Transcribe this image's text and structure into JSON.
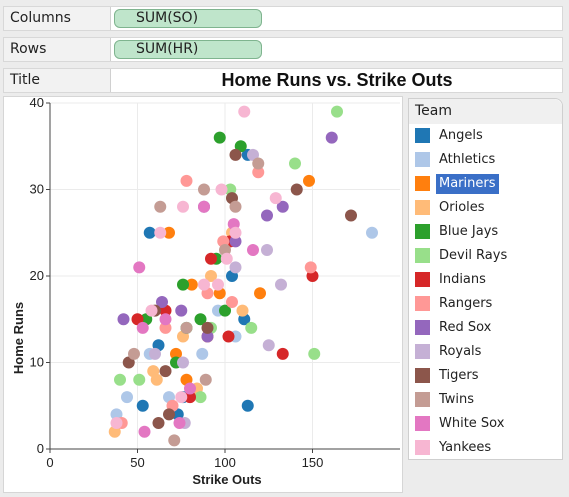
{
  "shelves": {
    "columns": {
      "label": "Columns",
      "pill": "SUM(SO)"
    },
    "rows": {
      "label": "Rows",
      "pill": "SUM(HR)"
    },
    "title": {
      "label": "Title",
      "value": "Home Runs vs. Strike Outs"
    }
  },
  "legend": {
    "title": "Team",
    "selected": "Mariners",
    "items": [
      {
        "name": "Angels",
        "color": "#1f77b4"
      },
      {
        "name": "Athletics",
        "color": "#aec7e8"
      },
      {
        "name": "Mariners",
        "color": "#ff7f0e"
      },
      {
        "name": "Orioles",
        "color": "#ffbb78"
      },
      {
        "name": "Blue Jays",
        "color": "#2ca02c"
      },
      {
        "name": "Devil Rays",
        "color": "#98df8a"
      },
      {
        "name": "Indians",
        "color": "#d62728"
      },
      {
        "name": "Rangers",
        "color": "#ff9896"
      },
      {
        "name": "Red Sox",
        "color": "#9467bd"
      },
      {
        "name": "Royals",
        "color": "#c5b0d5"
      },
      {
        "name": "Tigers",
        "color": "#8c564b"
      },
      {
        "name": "Twins",
        "color": "#c49c94"
      },
      {
        "name": "White Sox",
        "color": "#e377c2"
      },
      {
        "name": "Yankees",
        "color": "#f7b6d2"
      }
    ]
  },
  "chart_data": {
    "type": "scatter",
    "title": "Home Runs vs. Strike Outs",
    "xlabel": "Strike Outs",
    "ylabel": "Home Runs",
    "xlim": [
      0,
      200
    ],
    "ylim": [
      0,
      40
    ],
    "xticks": [
      0,
      50,
      100,
      150
    ],
    "yticks": [
      0,
      10,
      20,
      30,
      40
    ],
    "grid": true,
    "legend_position": "right",
    "series": [
      {
        "name": "Angels",
        "points": [
          [
            57,
            25
          ],
          [
            113,
            34
          ],
          [
            111,
            15
          ],
          [
            76,
            6
          ],
          [
            73,
            4
          ],
          [
            53,
            5
          ],
          [
            104,
            20
          ],
          [
            62,
            12
          ],
          [
            113,
            5
          ]
        ]
      },
      {
        "name": "Athletics",
        "points": [
          [
            184,
            25
          ],
          [
            57,
            11
          ],
          [
            44,
            6
          ],
          [
            38,
            4
          ],
          [
            68,
            6
          ],
          [
            87,
            11
          ],
          [
            106,
            13
          ],
          [
            96,
            16
          ]
        ]
      },
      {
        "name": "Mariners",
        "points": [
          [
            68,
            25
          ],
          [
            148,
            31
          ],
          [
            120,
            18
          ],
          [
            72,
            11
          ],
          [
            78,
            8
          ],
          [
            81,
            19
          ],
          [
            90,
            13
          ],
          [
            97,
            18
          ]
        ]
      },
      {
        "name": "Orioles",
        "points": [
          [
            37,
            2
          ],
          [
            59,
            9
          ],
          [
            76,
            13
          ],
          [
            104,
            25
          ],
          [
            92,
            20
          ],
          [
            110,
            16
          ],
          [
            84,
            7
          ],
          [
            61,
            8
          ]
        ]
      },
      {
        "name": "Blue Jays",
        "points": [
          [
            97,
            36
          ],
          [
            109,
            35
          ],
          [
            76,
            19
          ],
          [
            78,
            14
          ],
          [
            55,
            15
          ],
          [
            86,
            15
          ],
          [
            95,
            22
          ],
          [
            100,
            16
          ],
          [
            72,
            10
          ]
        ]
      },
      {
        "name": "Devil Rays",
        "points": [
          [
            164,
            39
          ],
          [
            140,
            33
          ],
          [
            103,
            30
          ],
          [
            115,
            14
          ],
          [
            151,
            11
          ],
          [
            40,
            8
          ],
          [
            51,
            8
          ],
          [
            92,
            14
          ],
          [
            86,
            6
          ]
        ]
      },
      {
        "name": "Indians",
        "points": [
          [
            150,
            20
          ],
          [
            133,
            11
          ],
          [
            92,
            22
          ],
          [
            103,
            24
          ],
          [
            66,
            16
          ],
          [
            50,
            15
          ],
          [
            102,
            13
          ],
          [
            80,
            6
          ]
        ]
      },
      {
        "name": "Rangers",
        "points": [
          [
            78,
            31
          ],
          [
            119,
            32
          ],
          [
            149,
            21
          ],
          [
            99,
            24
          ],
          [
            90,
            18
          ],
          [
            104,
            17
          ],
          [
            66,
            14
          ],
          [
            41,
            3
          ],
          [
            70,
            5
          ]
        ]
      },
      {
        "name": "Red Sox",
        "points": [
          [
            161,
            36
          ],
          [
            133,
            28
          ],
          [
            124,
            27
          ],
          [
            106,
            24
          ],
          [
            88,
            28
          ],
          [
            64,
            17
          ],
          [
            42,
            15
          ],
          [
            75,
            16
          ],
          [
            90,
            13
          ]
        ]
      },
      {
        "name": "Royals",
        "points": [
          [
            116,
            34
          ],
          [
            132,
            19
          ],
          [
            125,
            12
          ],
          [
            124,
            23
          ],
          [
            106,
            21
          ],
          [
            60,
            11
          ],
          [
            76,
            10
          ],
          [
            77,
            3
          ]
        ]
      },
      {
        "name": "Tigers",
        "points": [
          [
            106,
            34
          ],
          [
            141,
            30
          ],
          [
            172,
            27
          ],
          [
            104,
            29
          ],
          [
            90,
            14
          ],
          [
            66,
            9
          ],
          [
            45,
            10
          ],
          [
            60,
            16
          ],
          [
            68,
            4
          ],
          [
            62,
            3
          ]
        ]
      },
      {
        "name": "Twins",
        "points": [
          [
            119,
            33
          ],
          [
            88,
            30
          ],
          [
            63,
            28
          ],
          [
            106,
            28
          ],
          [
            100,
            23
          ],
          [
            78,
            14
          ],
          [
            48,
            11
          ],
          [
            71,
            1
          ],
          [
            89,
            8
          ]
        ]
      },
      {
        "name": "White Sox",
        "points": [
          [
            88,
            28
          ],
          [
            105,
            26
          ],
          [
            116,
            23
          ],
          [
            51,
            21
          ],
          [
            66,
            15
          ],
          [
            53,
            14
          ],
          [
            80,
            7
          ],
          [
            74,
            3
          ],
          [
            54,
            2
          ]
        ]
      },
      {
        "name": "Yankees",
        "points": [
          [
            111,
            39
          ],
          [
            98,
            30
          ],
          [
            76,
            28
          ],
          [
            129,
            29
          ],
          [
            106,
            25
          ],
          [
            101,
            22
          ],
          [
            96,
            19
          ],
          [
            88,
            19
          ],
          [
            63,
            25
          ],
          [
            58,
            16
          ],
          [
            38,
            3
          ],
          [
            75,
            6
          ]
        ]
      }
    ]
  }
}
